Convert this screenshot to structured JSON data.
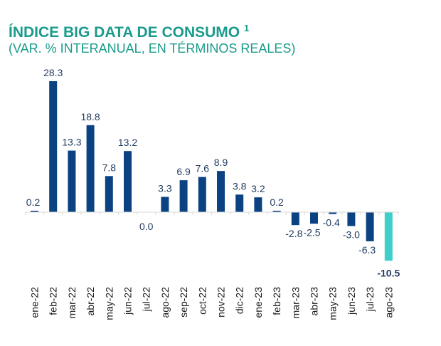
{
  "title": "ÍNDICE BIG DATA DE CONSUMO",
  "title_footnote": "1",
  "subtitle": "(VAR. % INTERANUAL, EN TÉRMINOS REALES)",
  "colors": {
    "title": "#1a9b8c",
    "bar": "#0b4282",
    "highlight_bar": "#3ecfcb",
    "highlight_label": "#2bbfb5",
    "label": "#1f3a5f"
  },
  "chart_data": {
    "type": "bar",
    "title": "ÍNDICE BIG DATA DE CONSUMO 1",
    "subtitle": "(VAR. % INTERANUAL, EN TÉRMINOS REALES)",
    "xlabel": "",
    "ylabel": "",
    "categories": [
      "ene-22",
      "feb-22",
      "mar-22",
      "abr-22",
      "may-22",
      "jun-22",
      "jul-22",
      "ago-22",
      "sep-22",
      "oct-22",
      "nov-22",
      "dic-22",
      "ene-23",
      "feb-23",
      "mar-23",
      "abr-23",
      "may-23",
      "jun-23",
      "jul-23",
      "ago-23"
    ],
    "values": [
      0.2,
      28.3,
      13.3,
      18.8,
      7.8,
      13.2,
      0.0,
      3.3,
      6.9,
      7.6,
      8.9,
      3.8,
      3.2,
      0.2,
      -2.8,
      -2.5,
      -0.4,
      -3.0,
      -6.3,
      -10.5
    ],
    "labels": [
      "0.2",
      "28.3",
      "13.3",
      "18.8",
      "7.8",
      "13.2",
      "0.0",
      "3.3",
      "6.9",
      "7.6",
      "8.9",
      "3.8",
      "3.2",
      "0.2",
      "-2.8",
      "-2.5",
      "-0.4",
      "-3.0",
      "-6.3",
      "-10.5"
    ],
    "highlight_index": 19,
    "ylim": [
      -11,
      29
    ],
    "grid": false,
    "legend": "none"
  }
}
